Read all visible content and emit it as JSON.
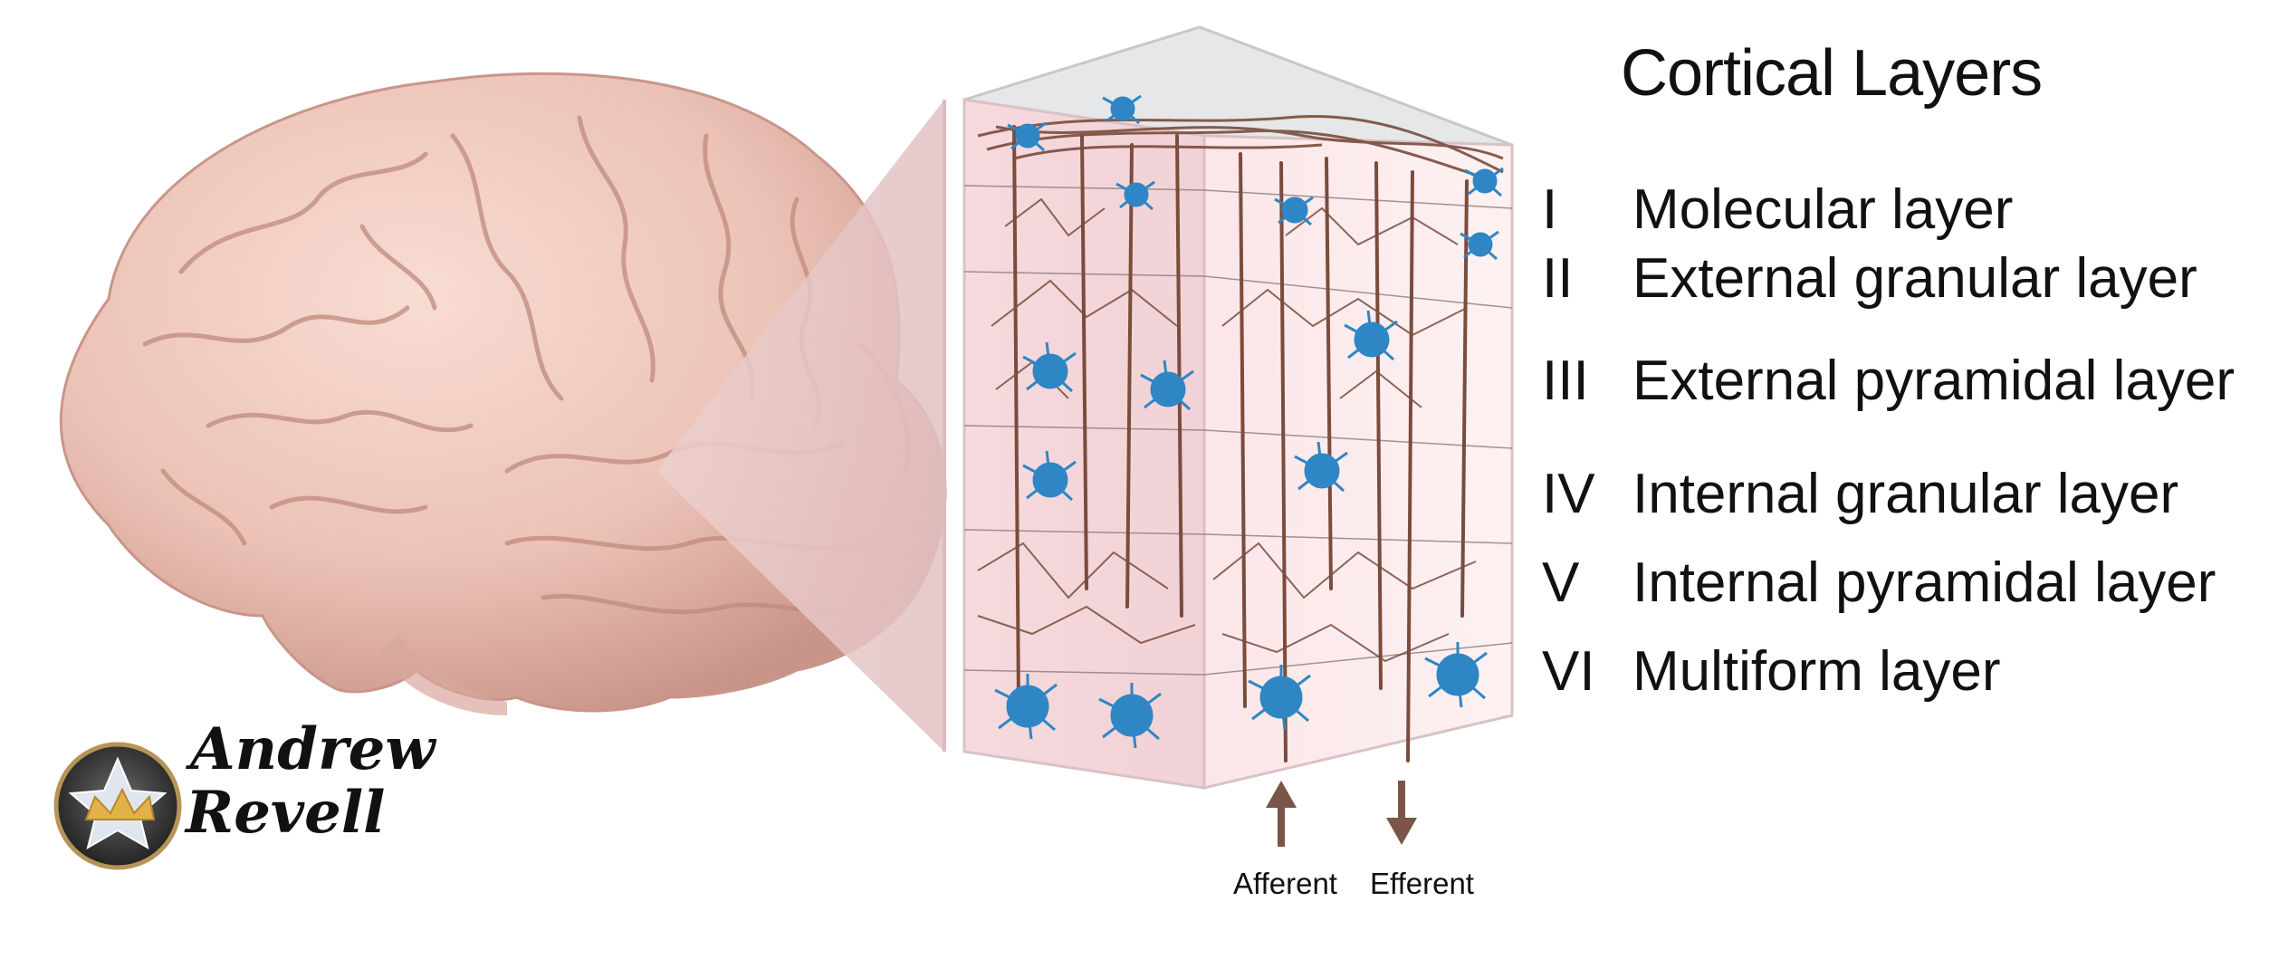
{
  "figure": {
    "title": "Cortical Layers",
    "layers": [
      {
        "numeral": "I",
        "name": "Molecular layer"
      },
      {
        "numeral": "II",
        "name": "External granular layer"
      },
      {
        "numeral": "III",
        "name": "External pyramidal layer"
      },
      {
        "numeral": "IV",
        "name": "Internal granular layer"
      },
      {
        "numeral": "V",
        "name": "Internal pyramidal layer"
      },
      {
        "numeral": "VI",
        "name": "Multiform layer"
      }
    ],
    "arrows": {
      "afferent": "Afferent",
      "efferent": "Efferent"
    },
    "logo": {
      "line1": "Andrew",
      "line2": "Revell"
    },
    "colors": {
      "brain": "#efc9bf",
      "cortex_block": "#f6dcdf",
      "neuron_body": "#2f86c4",
      "dendrite": "#7a4c3c",
      "arrow": "#7a5548"
    }
  }
}
